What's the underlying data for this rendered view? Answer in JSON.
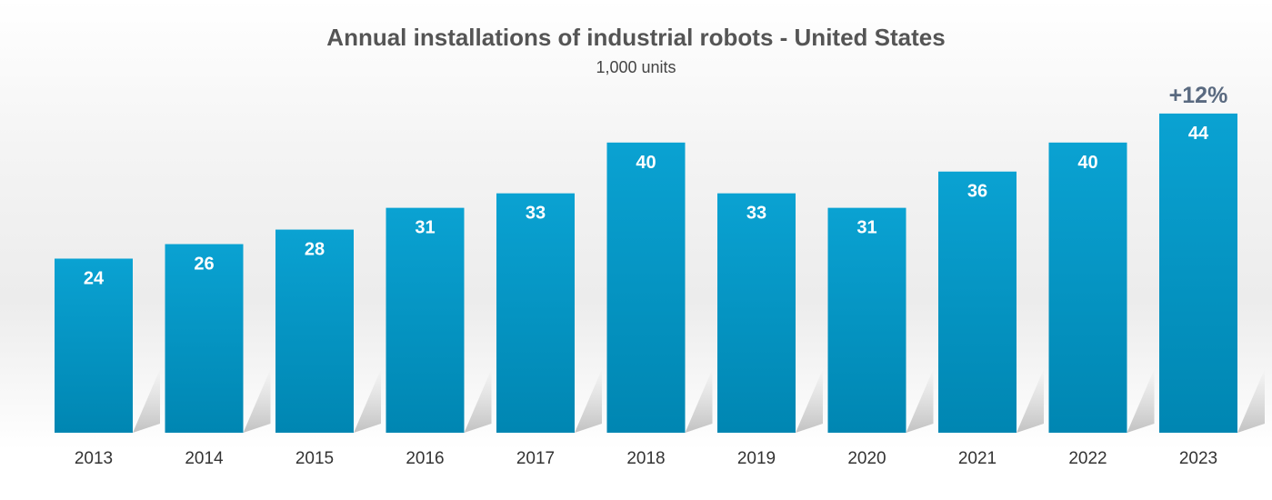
{
  "chart_data": {
    "type": "bar",
    "title": "Annual installations of industrial robots - United States",
    "subtitle": "1,000 units",
    "categories": [
      "2013",
      "2014",
      "2015",
      "2016",
      "2017",
      "2018",
      "2019",
      "2020",
      "2021",
      "2022",
      "2023"
    ],
    "values": [
      24,
      26,
      28,
      31,
      33,
      40,
      33,
      31,
      36,
      40,
      44
    ],
    "annotation": {
      "category": "2023",
      "text": "+12%"
    },
    "xlabel": "",
    "ylabel": "",
    "ylim": [
      0,
      44
    ],
    "grid": false,
    "colors": {
      "bar_top": "#0aa2d2",
      "bar_bottom": "#0086b2",
      "value_label": "#ffffff",
      "annotation": "#5a6a80",
      "tick_label": "#333333"
    }
  }
}
